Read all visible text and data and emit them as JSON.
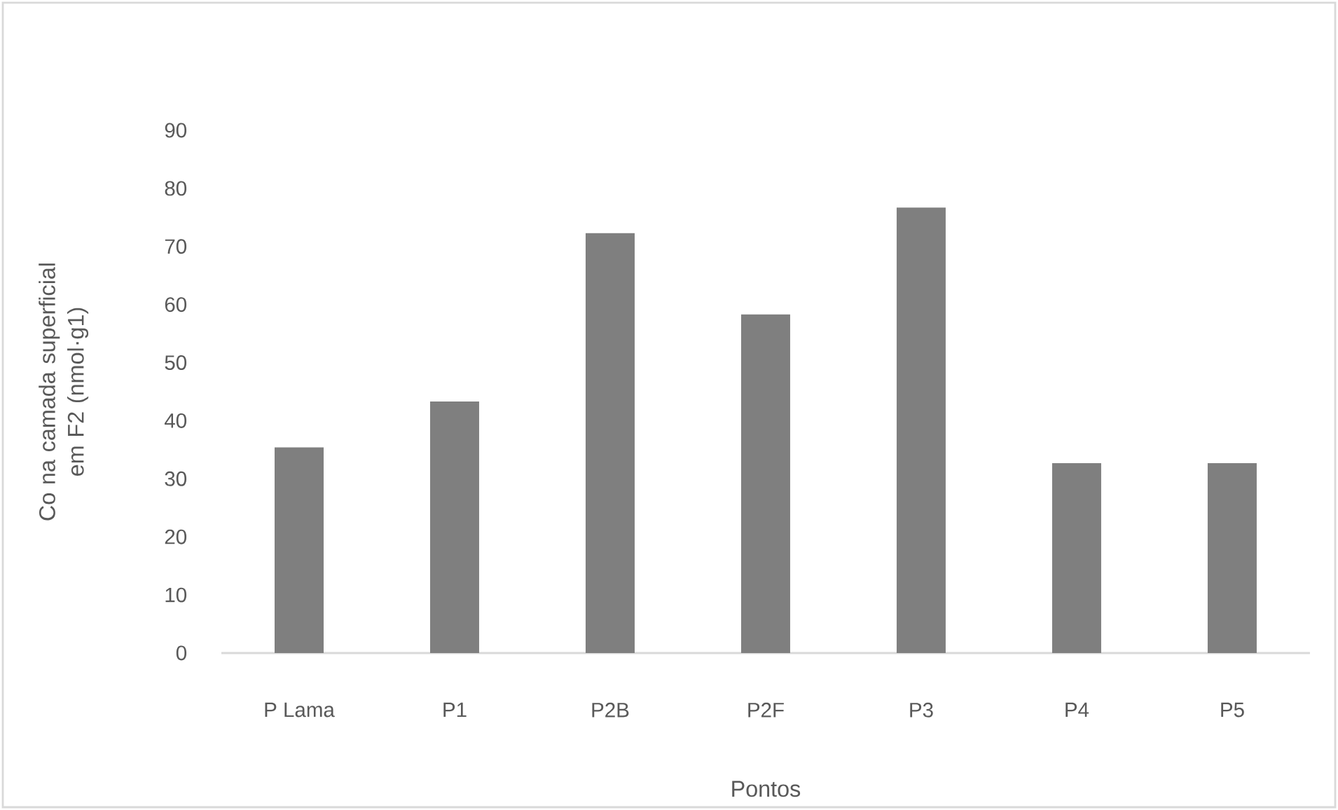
{
  "chart_data": {
    "type": "bar",
    "xlabel": "Pontos",
    "ylabel": "Co na camada superficial em F2 (nmol·g1)",
    "categories": [
      "P Lama",
      "P1",
      "P2B",
      "P2F",
      "P3",
      "P4",
      "P5"
    ],
    "values": [
      35.4,
      43.3,
      72.3,
      58.3,
      76.7,
      32.7,
      32.7
    ],
    "color": "#7f7f7f",
    "ylim": [
      0,
      90
    ],
    "yticks": [
      0,
      10,
      20,
      30,
      40,
      50,
      60,
      70,
      80,
      90
    ],
    "grid": false
  }
}
